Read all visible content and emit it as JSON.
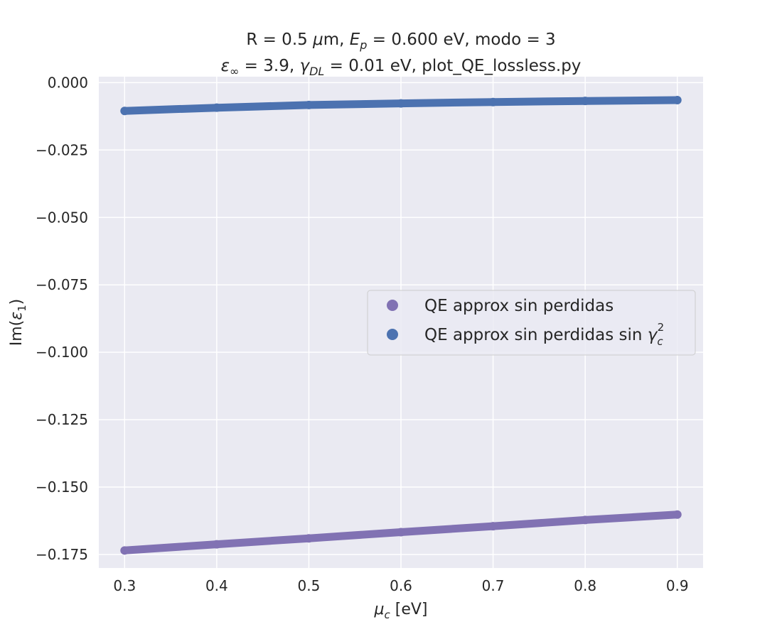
{
  "chart_data": {
    "type": "scatter",
    "title_line1": "R = 0.5 μm, E_p = 0.600 eV, modo = 3",
    "title_line2": "ε_∞ = 3.9, γ_DL = 0.01 eV, plot_QE_lossless.py",
    "xlabel": "μ_c [eV]",
    "ylabel": "Im(ε_1)",
    "xlim": [
      0.272,
      0.928
    ],
    "ylim": [
      -0.18,
      0.0022
    ],
    "xticks": [
      0.3,
      0.4,
      0.5,
      0.6,
      0.7,
      0.8,
      0.9
    ],
    "xtick_labels": [
      "0.3",
      "0.4",
      "0.5",
      "0.6",
      "0.7",
      "0.8",
      "0.9"
    ],
    "yticks": [
      0.0,
      -0.025,
      -0.05,
      -0.075,
      -0.1,
      -0.125,
      -0.15,
      -0.175
    ],
    "ytick_labels": [
      "0.000",
      "−0.025",
      "−0.050",
      "−0.075",
      "−0.100",
      "−0.125",
      "−0.150",
      "−0.175"
    ],
    "grid": true,
    "legend_position": "center-right",
    "series": [
      {
        "name": "QE approx sin perdidas",
        "color": "#8172b3",
        "x": [
          0.3,
          0.4,
          0.5,
          0.6,
          0.7,
          0.8,
          0.9
        ],
        "y": [
          -0.1735,
          -0.1712,
          -0.169,
          -0.1667,
          -0.1645,
          -0.1622,
          -0.1602
        ]
      },
      {
        "name": "QE approx sin perdidas sin γ_c^2",
        "color": "#4c72b0",
        "x": [
          0.3,
          0.4,
          0.5,
          0.6,
          0.7,
          0.8,
          0.9
        ],
        "y": [
          -0.0105,
          -0.0093,
          -0.0083,
          -0.0077,
          -0.0072,
          -0.0068,
          -0.0065
        ]
      }
    ]
  }
}
